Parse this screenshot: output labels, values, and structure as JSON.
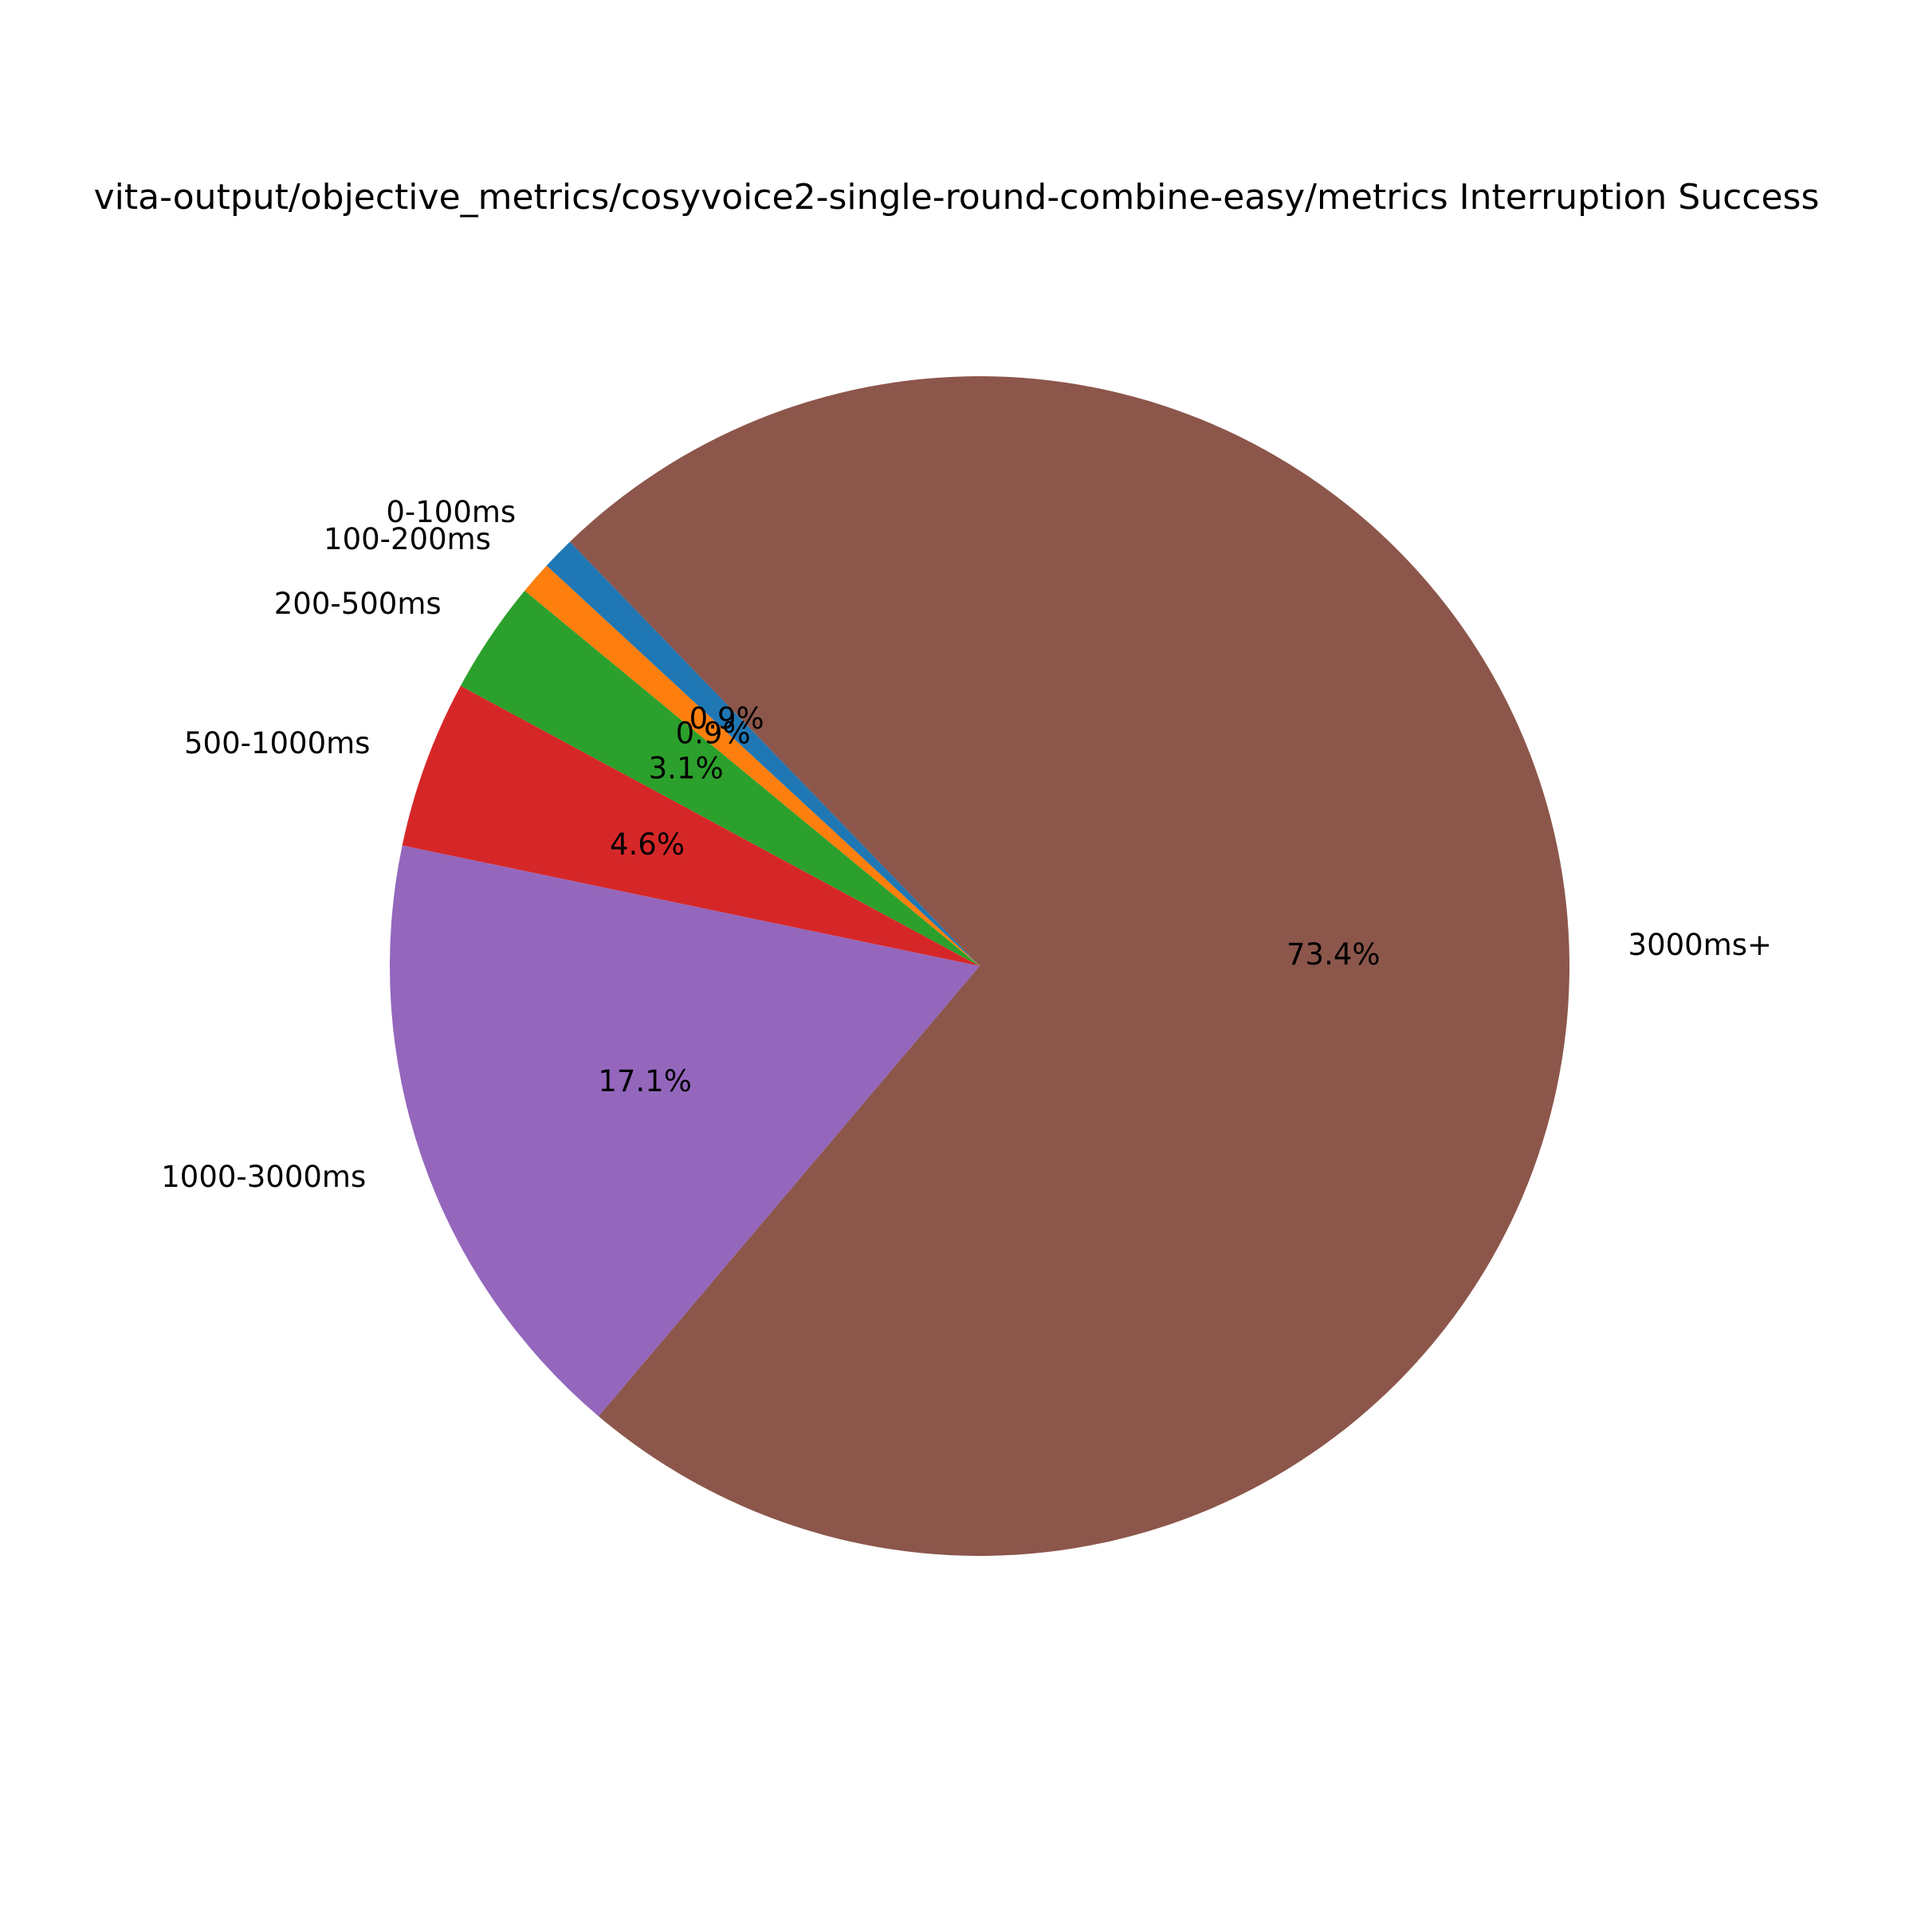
{
  "chart_data": {
    "type": "pie",
    "title": "vita-output/objective_metrics/cosyvoice2-single-round-combine-easy/metrics Interruption Success",
    "categories": [
      "0-100ms",
      "100-200ms",
      "200-500ms",
      "500-1000ms",
      "1000-3000ms",
      "3000ms+"
    ],
    "values": [
      0.9,
      0.9,
      3.1,
      4.6,
      17.1,
      73.4
    ],
    "value_labels": [
      "0.9%",
      "0.9%",
      "3.1%",
      "4.6%",
      "17.1%",
      "73.4%"
    ],
    "colors": [
      "#1f77b4",
      "#ff7f0e",
      "#2ca02c",
      "#d62728",
      "#9467bd",
      "#8c564b"
    ],
    "start_angle_deg": 134,
    "direction": "counterclockwise",
    "legend": "none"
  }
}
